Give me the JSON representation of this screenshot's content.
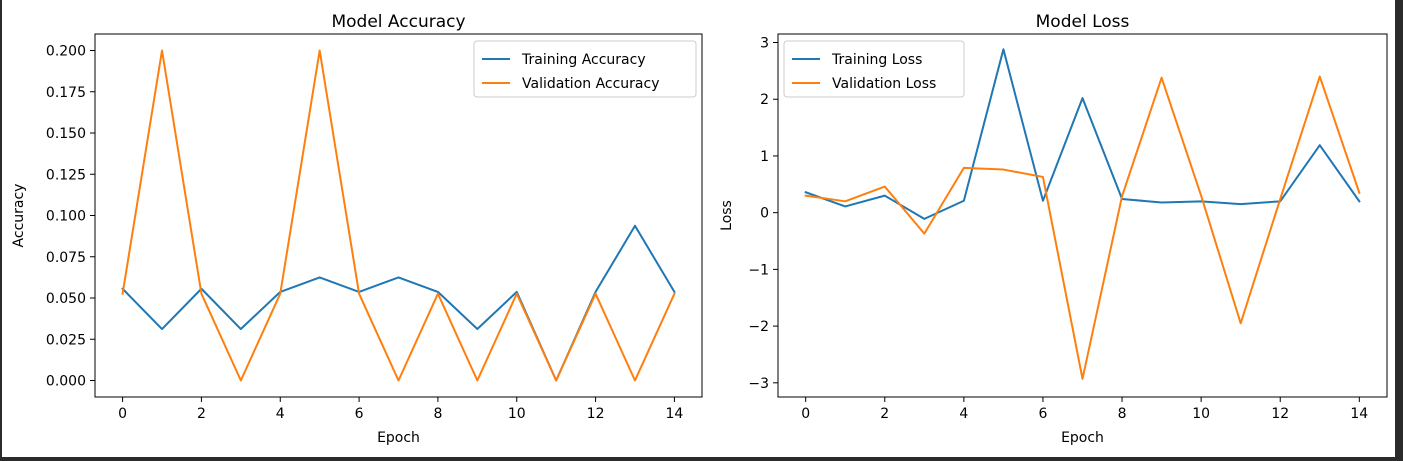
{
  "chart_data": [
    {
      "type": "line",
      "title": "Model Accuracy",
      "xlabel": "Epoch",
      "ylabel": "Accuracy",
      "x": [
        0,
        1,
        2,
        3,
        4,
        5,
        6,
        7,
        8,
        9,
        10,
        11,
        12,
        13,
        14
      ],
      "xlim": [
        -0.7,
        14.7
      ],
      "ylim": [
        -0.01,
        0.21
      ],
      "xticks": [
        0,
        2,
        4,
        6,
        8,
        10,
        12,
        14
      ],
      "xtick_labels": [
        "0",
        "2",
        "4",
        "6",
        "8",
        "10",
        "12",
        "14"
      ],
      "yticks": [
        0,
        0.025,
        0.05,
        0.075,
        0.1,
        0.125,
        0.15,
        0.175,
        0.2
      ],
      "ytick_labels": [
        "0.000",
        "0.025",
        "0.050",
        "0.075",
        "0.100",
        "0.125",
        "0.150",
        "0.175",
        "0.200"
      ],
      "grid": false,
      "legend_position": "top-right",
      "series": [
        {
          "name": "Training Accuracy",
          "color": "#1f77b4",
          "values": [
            0.0556,
            0.0312,
            0.0556,
            0.0312,
            0.0537,
            0.0625,
            0.0537,
            0.0625,
            0.0537,
            0.0312,
            0.0537,
            0.0,
            0.0537,
            0.0938,
            0.0537
          ]
        },
        {
          "name": "Validation Accuracy",
          "color": "#ff7f0e",
          "values": [
            0.0526,
            0.2,
            0.0526,
            0.0,
            0.0526,
            0.2,
            0.0526,
            0.0,
            0.0526,
            0.0,
            0.0526,
            0.0,
            0.0526,
            0.0,
            0.0526
          ]
        }
      ]
    },
    {
      "type": "line",
      "title": "Model Loss",
      "xlabel": "Epoch",
      "ylabel": "Loss",
      "x": [
        0,
        1,
        2,
        3,
        4,
        5,
        6,
        7,
        8,
        9,
        10,
        11,
        12,
        13,
        14
      ],
      "xlim": [
        -0.7,
        14.7
      ],
      "ylim": [
        -3.25,
        3.15
      ],
      "xticks": [
        0,
        2,
        4,
        6,
        8,
        10,
        12,
        14
      ],
      "xtick_labels": [
        "0",
        "2",
        "4",
        "6",
        "8",
        "10",
        "12",
        "14"
      ],
      "yticks": [
        -3,
        -2,
        -1,
        0,
        1,
        2,
        3
      ],
      "ytick_labels": [
        "−3",
        "−2",
        "−1",
        "0",
        "1",
        "2",
        "3"
      ],
      "grid": false,
      "legend_position": "top-left",
      "series": [
        {
          "name": "Training Loss",
          "color": "#1f77b4",
          "values": [
            0.36,
            0.11,
            0.3,
            -0.11,
            0.21,
            2.88,
            0.21,
            2.02,
            0.24,
            0.18,
            0.2,
            0.15,
            0.2,
            1.19,
            0.2
          ]
        },
        {
          "name": "Validation Loss",
          "color": "#ff7f0e",
          "values": [
            0.3,
            0.2,
            0.46,
            -0.37,
            0.79,
            0.76,
            0.63,
            -2.93,
            0.29,
            2.38,
            0.3,
            -1.95,
            0.24,
            2.4,
            0.35
          ]
        }
      ]
    }
  ]
}
